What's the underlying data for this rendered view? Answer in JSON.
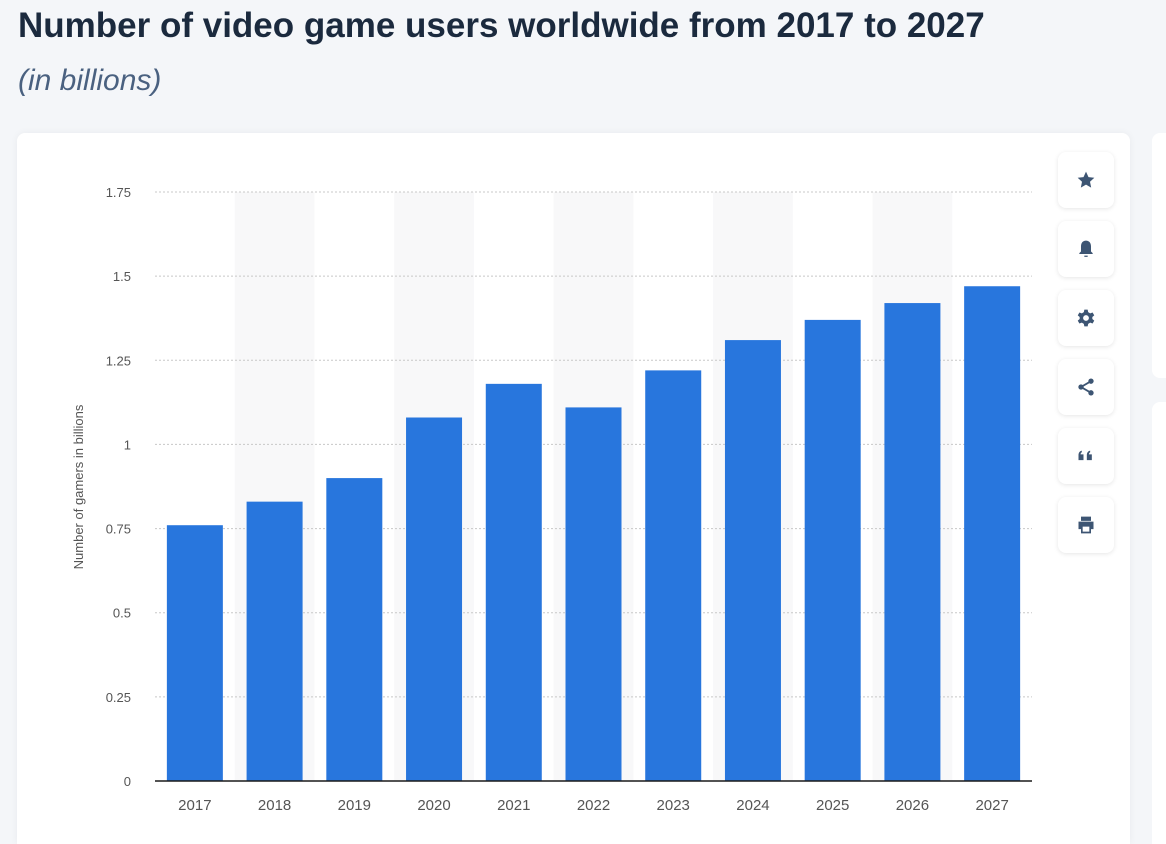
{
  "header": {
    "title": "Number of video game users worldwide from 2017 to 2027",
    "subtitle": "(in billions)"
  },
  "toolbar": {
    "icons": [
      "star-icon",
      "bell-icon",
      "gear-icon",
      "share-icon",
      "quote-icon",
      "print-icon"
    ]
  },
  "colors": {
    "bar": "#2876dd",
    "band": "#f8f8f9",
    "grid": "#c8c8c8",
    "axis": "#1a1a1a",
    "text": "#555555"
  },
  "chart_data": {
    "type": "bar",
    "title": "Number of video game users worldwide from 2017 to 2027",
    "subtitle": "(in billions)",
    "xlabel": "",
    "ylabel": "Number of gamers in billions",
    "categories": [
      "2017",
      "2018",
      "2019",
      "2020",
      "2021",
      "2022",
      "2023",
      "2024",
      "2025",
      "2026",
      "2027"
    ],
    "values": [
      0.76,
      0.83,
      0.9,
      1.08,
      1.18,
      1.11,
      1.22,
      1.31,
      1.37,
      1.42,
      1.47
    ],
    "ylim": [
      0,
      1.75
    ],
    "yticks": [
      0,
      0.25,
      0.5,
      0.75,
      1,
      1.25,
      1.5,
      1.75
    ],
    "ytick_labels": [
      "0",
      "0.25",
      "0.5",
      "0.75",
      "1",
      "1.25",
      "1.5",
      "1.75"
    ],
    "grid": true,
    "legend": "none"
  }
}
